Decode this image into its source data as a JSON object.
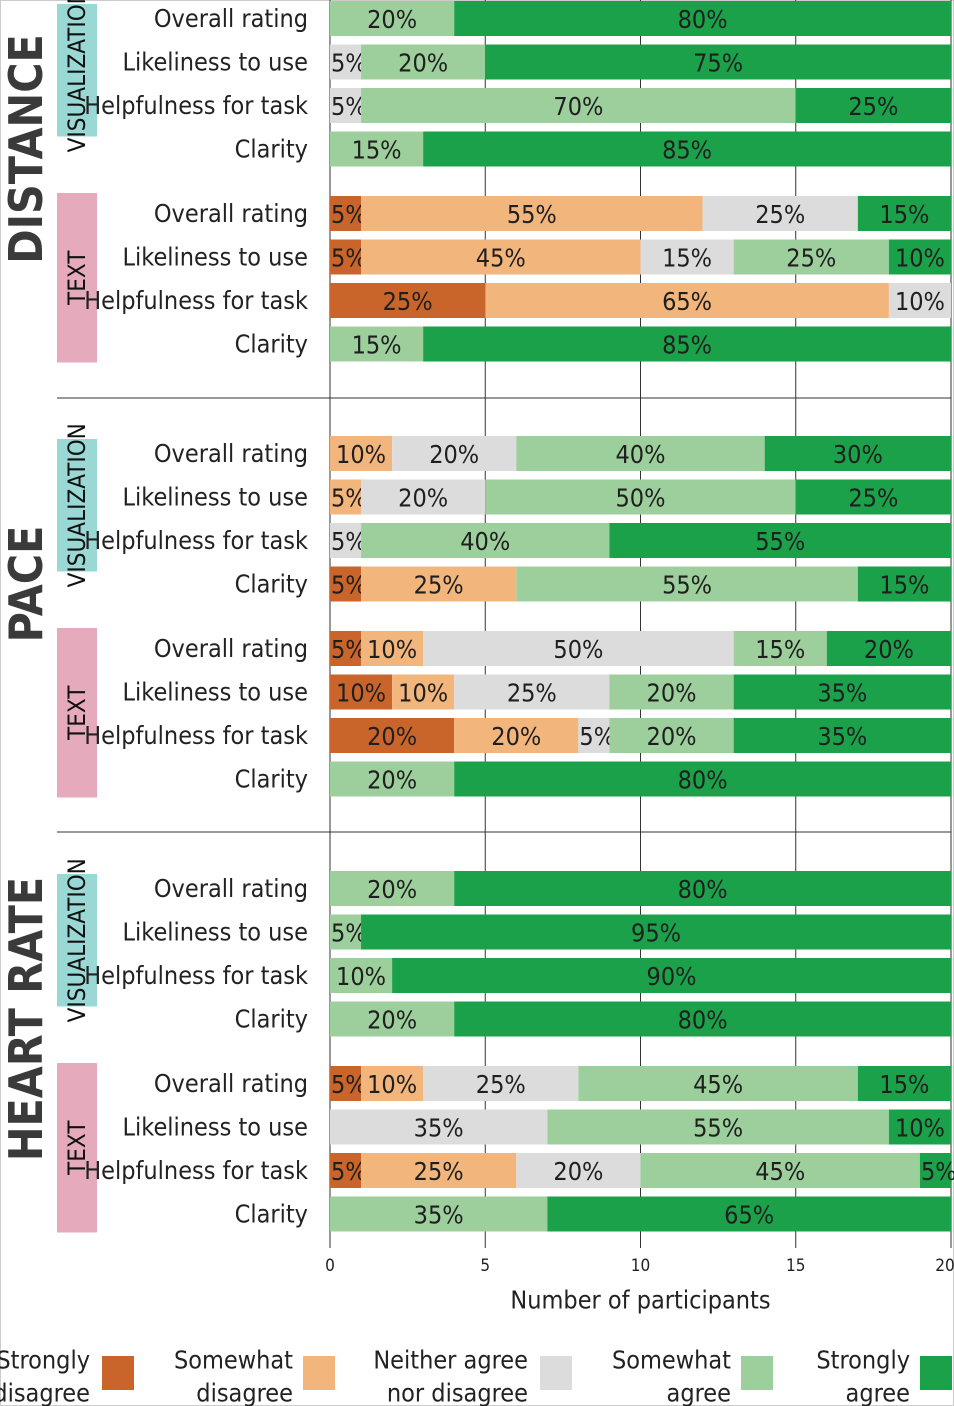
{
  "chart_data": {
    "type": "bar",
    "orientation": "horizontal",
    "stacked": true,
    "xlabel": "Number of participants",
    "xlim": [
      0,
      20
    ],
    "xticks": [
      0,
      5,
      10,
      15,
      20
    ],
    "grid": true,
    "legend_position": "bottom",
    "levels": [
      {
        "label_lines": [
          "Strongly",
          "disagree"
        ],
        "color": "#c9652a"
      },
      {
        "label_lines": [
          "Somewhat",
          "disagree"
        ],
        "color": "#f2b57c"
      },
      {
        "label_lines": [
          "Neither agree",
          "nor disagree"
        ],
        "color": "#dcdcdc"
      },
      {
        "label_lines": [
          "Somewhat",
          "agree"
        ],
        "color": "#9ccf9c"
      },
      {
        "label_lines": [
          "Strongly",
          "agree"
        ],
        "color": "#1aa14a"
      }
    ],
    "group_colors": {
      "VISUALIZATION": "#99d8d5",
      "TEXT": "#e6aabd"
    },
    "sections": [
      {
        "name": "DISTANCE",
        "groups": [
          {
            "name": "VISUALIZATION",
            "rows": [
              {
                "label": "Overall rating",
                "values": [
                  0,
                  0,
                  0,
                  4,
                  16
                ]
              },
              {
                "label": "Likeliness to use",
                "values": [
                  0,
                  0,
                  1,
                  4,
                  15
                ]
              },
              {
                "label": "Helpfulness for task",
                "values": [
                  0,
                  0,
                  1,
                  14,
                  5
                ]
              },
              {
                "label": "Clarity",
                "values": [
                  0,
                  0,
                  0,
                  3,
                  17
                ]
              }
            ]
          },
          {
            "name": "TEXT",
            "rows": [
              {
                "label": "Overall rating",
                "values": [
                  1,
                  11,
                  5,
                  0,
                  3
                ]
              },
              {
                "label": "Likeliness to use",
                "values": [
                  1,
                  9,
                  3,
                  5,
                  2
                ]
              },
              {
                "label": "Helpfulness for task",
                "values": [
                  5,
                  13,
                  2,
                  0,
                  0
                ]
              },
              {
                "label": "Clarity",
                "values": [
                  0,
                  0,
                  0,
                  3,
                  17
                ]
              }
            ]
          }
        ]
      },
      {
        "name": "PACE",
        "groups": [
          {
            "name": "VISUALIZATION",
            "rows": [
              {
                "label": "Overall rating",
                "values": [
                  0,
                  2,
                  4,
                  8,
                  6
                ]
              },
              {
                "label": "Likeliness to use",
                "values": [
                  0,
                  1,
                  4,
                  10,
                  5
                ]
              },
              {
                "label": "Helpfulness for task",
                "values": [
                  0,
                  0,
                  1,
                  8,
                  11
                ]
              },
              {
                "label": "Clarity",
                "values": [
                  1,
                  5,
                  0,
                  11,
                  3
                ]
              }
            ]
          },
          {
            "name": "TEXT",
            "rows": [
              {
                "label": "Overall rating",
                "values": [
                  1,
                  2,
                  10,
                  3,
                  4
                ]
              },
              {
                "label": "Likeliness to use",
                "values": [
                  2,
                  2,
                  5,
                  4,
                  7
                ]
              },
              {
                "label": "Helpfulness for task",
                "values": [
                  4,
                  4,
                  1,
                  4,
                  7
                ]
              },
              {
                "label": "Clarity",
                "values": [
                  0,
                  0,
                  0,
                  4,
                  16
                ]
              }
            ]
          }
        ]
      },
      {
        "name": "HEART RATE",
        "groups": [
          {
            "name": "VISUALIZATION",
            "rows": [
              {
                "label": "Overall rating",
                "values": [
                  0,
                  0,
                  0,
                  4,
                  16
                ]
              },
              {
                "label": "Likeliness to use",
                "values": [
                  0,
                  0,
                  0,
                  1,
                  19
                ]
              },
              {
                "label": "Helpfulness for task",
                "values": [
                  0,
                  0,
                  0,
                  2,
                  18
                ]
              },
              {
                "label": "Clarity",
                "values": [
                  0,
                  0,
                  0,
                  4,
                  16
                ]
              }
            ]
          },
          {
            "name": "TEXT",
            "rows": [
              {
                "label": "Overall rating",
                "values": [
                  1,
                  2,
                  5,
                  9,
                  3
                ]
              },
              {
                "label": "Likeliness to use",
                "values": [
                  0,
                  0,
                  7,
                  11,
                  2
                ]
              },
              {
                "label": "Helpfulness for task",
                "values": [
                  1,
                  5,
                  4,
                  9,
                  1
                ]
              },
              {
                "label": "Clarity",
                "values": [
                  0,
                  0,
                  0,
                  7,
                  13
                ]
              }
            ]
          }
        ]
      }
    ]
  }
}
